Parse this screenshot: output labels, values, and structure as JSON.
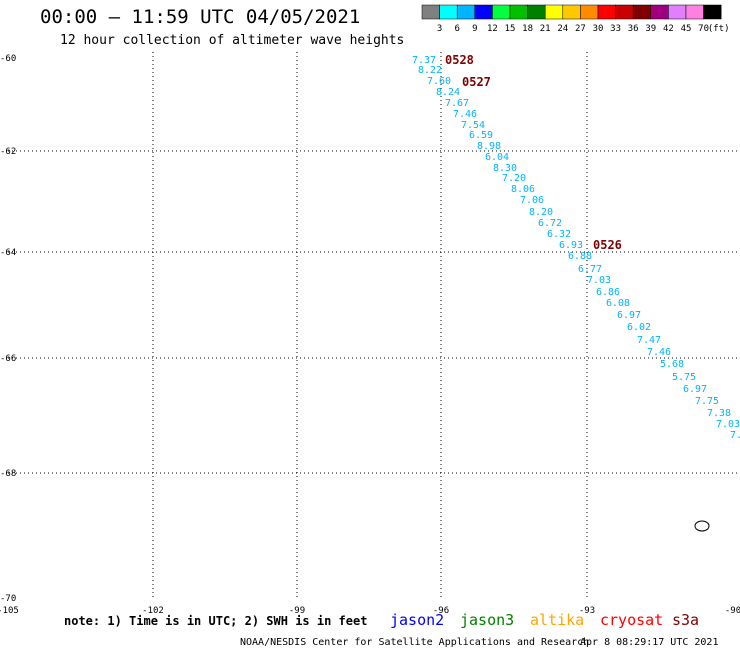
{
  "header": {
    "title": "00:00 – 11:59 UTC 04/05/2021",
    "subtitle": "12 hour collection of altimeter wave heights"
  },
  "legend": {
    "colors": [
      "#808080",
      "#00ffff",
      "#00b4ff",
      "#0000ff",
      "#00ff40",
      "#00c000",
      "#008000",
      "#ffff00",
      "#ffc800",
      "#ff8c00",
      "#ff0000",
      "#c80000",
      "#800000",
      "#a00080",
      "#e080ff",
      "#ff80e0",
      "#000000"
    ],
    "labels": [
      "3",
      "6",
      "9",
      "12",
      "15",
      "18",
      "21",
      "24",
      "27",
      "30",
      "33",
      "36",
      "39",
      "42",
      "45",
      "70"
    ],
    "unit": "(ft)"
  },
  "axes": {
    "lat_labels": [
      "-60",
      "-62",
      "-64",
      "-66",
      "-68",
      "-70"
    ],
    "lon_labels": [
      "-105",
      "-102",
      "-99",
      "-96",
      "-93",
      "-90"
    ]
  },
  "track": {
    "color": "#00b4ff",
    "values": [
      "7.37",
      "8.22",
      "7.60",
      "8.24",
      "7.67",
      "7.46",
      "7.54",
      "6.59",
      "8.98",
      "6.04",
      "8.30",
      "7.20",
      "8.06",
      "7.06",
      "8.20",
      "6.72",
      "6.32",
      "6.93",
      "6.88",
      "6.77",
      "7.03",
      "6.86",
      "6.08",
      "6.97",
      "6.02",
      "7.47",
      "7.46",
      "5.68",
      "5.75",
      "6.97",
      "7.75",
      "7.38",
      "7.03",
      "7."
    ]
  },
  "time_labels": {
    "color": "#800000",
    "items": [
      "0528",
      "0527",
      "0526"
    ]
  },
  "footer": {
    "note": "note: 1) Time is in UTC; 2) SWH is in feet",
    "satellites": [
      {
        "name": "jason2",
        "color": "#0000ff"
      },
      {
        "name": "jason3",
        "color": "#008000"
      },
      {
        "name": "altika",
        "color": "#ffa500"
      },
      {
        "name": "cryosat",
        "color": "#ff0000"
      },
      {
        "name": "s3a",
        "color": "#800000"
      }
    ],
    "credit": "NOAA/NESDIS Center for Satellite Applications and Research",
    "timestamp": "Apr  8 08:29:17 UTC 2021"
  }
}
